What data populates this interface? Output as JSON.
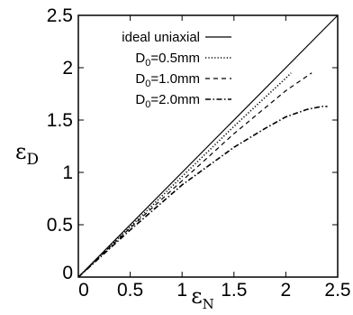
{
  "chart_data": {
    "type": "line",
    "xlabel": "ε",
    "xlabel_sub": "N",
    "ylabel": "ε",
    "ylabel_sub": "D",
    "xlim": [
      0,
      2.5
    ],
    "ylim": [
      0,
      2.5
    ],
    "x_ticks": [
      "0",
      "0.5",
      "1",
      "1.5",
      "2",
      "2.5"
    ],
    "y_ticks": [
      "0",
      "0.5",
      "1",
      "1.5",
      "2",
      "2.5"
    ],
    "grid": false,
    "legend_position": "top-left",
    "series": [
      {
        "name": "ideal uniaxial",
        "style": "solid",
        "points": [
          [
            0,
            0
          ],
          [
            2.5,
            2.5
          ]
        ]
      },
      {
        "name": "D0=0.5mm",
        "label_main": "D",
        "label_sub": "0",
        "label_rest": "=0.5mm",
        "style": "dotted",
        "points": [
          [
            0,
            0
          ],
          [
            0.5,
            0.48
          ],
          [
            1.0,
            0.96
          ],
          [
            1.5,
            1.44
          ],
          [
            2.0,
            1.9
          ],
          [
            2.05,
            1.95
          ]
        ]
      },
      {
        "name": "D0=1.0mm",
        "label_main": "D",
        "label_sub": "0",
        "label_rest": "=1.0mm",
        "style": "dashed",
        "points": [
          [
            0,
            0
          ],
          [
            0.5,
            0.47
          ],
          [
            1.0,
            0.92
          ],
          [
            1.5,
            1.37
          ],
          [
            2.0,
            1.78
          ],
          [
            2.25,
            1.95
          ]
        ]
      },
      {
        "name": "D0=2.0mm",
        "label_main": "D",
        "label_sub": "0",
        "label_rest": "=2.0mm",
        "style": "dashdot",
        "points": [
          [
            0,
            0
          ],
          [
            0.5,
            0.45
          ],
          [
            1.0,
            0.88
          ],
          [
            1.5,
            1.24
          ],
          [
            1.8,
            1.42
          ],
          [
            2.0,
            1.53
          ],
          [
            2.2,
            1.6
          ],
          [
            2.35,
            1.63
          ],
          [
            2.4,
            1.63
          ]
        ]
      }
    ]
  }
}
